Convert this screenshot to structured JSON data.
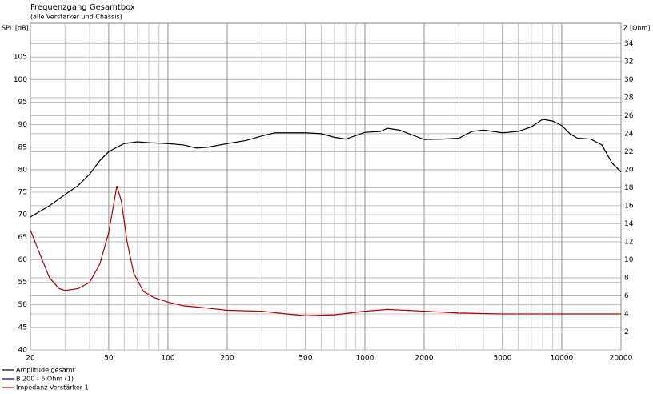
{
  "chart_data": {
    "type": "line",
    "title": "Frequenzgang Gesamtbox",
    "subtitle": "(alle Verstärker und Chassis)",
    "y_label": "SPL [dB]",
    "y2_label": "Z [Ohm]",
    "log_x": true,
    "xlim": [
      20,
      20000
    ],
    "xticks": [
      20,
      50,
      100,
      200,
      500,
      1000,
      2000,
      5000,
      10000,
      20000
    ],
    "x_minor_grid": [
      30,
      40,
      60,
      70,
      80,
      90,
      300,
      400,
      600,
      700,
      800,
      900,
      3000,
      4000,
      6000,
      7000,
      8000,
      9000
    ],
    "ylim": [
      40,
      112.5
    ],
    "yticks": [
      40,
      45,
      50,
      55,
      60,
      65,
      70,
      75,
      80,
      85,
      90,
      95,
      100,
      105
    ],
    "y2lim": [
      0,
      36.25
    ],
    "y2ticks": [
      2,
      4,
      6,
      8,
      10,
      12,
      14,
      16,
      18,
      20,
      22,
      24,
      26,
      28,
      30,
      32,
      34
    ],
    "grid": true,
    "legend": "bottom-left",
    "legend_entries": [
      {
        "name": "B 200 - 6 Ohm (1)",
        "color": "#000080"
      }
    ],
    "series": [
      {
        "name": "Amplitude gesamt",
        "color": "#000000",
        "x": [
          20,
          25,
          30,
          35,
          40,
          45,
          50,
          55,
          60,
          70,
          80,
          100,
          120,
          140,
          160,
          200,
          250,
          300,
          350,
          400,
          500,
          600,
          700,
          800,
          1000,
          1200,
          1300,
          1500,
          2000,
          2500,
          3000,
          3500,
          4000,
          5000,
          6000,
          7000,
          8000,
          9000,
          10000,
          11000,
          12000,
          14000,
          16000,
          18000,
          20000
        ],
        "values": [
          69.5,
          72,
          74.5,
          76.5,
          79,
          82,
          84,
          85,
          85.8,
          86.2,
          86,
          85.8,
          85.5,
          84.8,
          85,
          85.8,
          86.5,
          87.5,
          88.2,
          88.2,
          88.2,
          88,
          87.2,
          86.8,
          88.3,
          88.5,
          89.2,
          88.8,
          86.7,
          86.8,
          87,
          88.5,
          88.8,
          88.2,
          88.5,
          89.5,
          91.2,
          90.8,
          89.8,
          88,
          87,
          86.8,
          85.5,
          81.5,
          79.5
        ]
      },
      {
        "name": "Impedanz Verstärker 1",
        "color": "#b00000",
        "axis": "y2",
        "x": [
          20,
          22,
          25,
          28,
          30,
          35,
          40,
          45,
          50,
          55,
          58,
          62,
          67,
          75,
          85,
          100,
          120,
          150,
          200,
          300,
          400,
          500,
          700,
          1000,
          1300,
          2000,
          3000,
          5000,
          10000,
          20000
        ],
        "values": [
          13.3,
          11,
          8,
          6.8,
          6.6,
          6.8,
          7.5,
          9.5,
          13,
          18.2,
          16.5,
          12,
          8.5,
          6.5,
          5.8,
          5.3,
          4.9,
          4.7,
          4.4,
          4.3,
          4,
          3.8,
          3.9,
          4.3,
          4.5,
          4.3,
          4.1,
          4,
          4,
          4
        ]
      }
    ]
  }
}
